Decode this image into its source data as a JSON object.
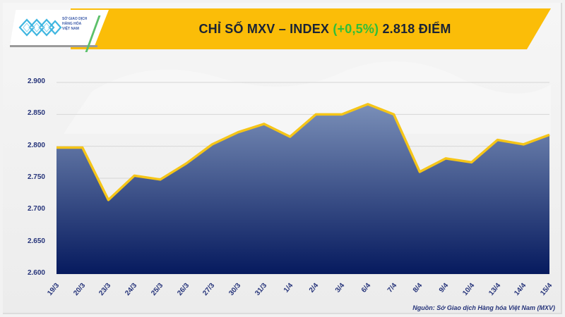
{
  "header": {
    "title_prefix": "CHỈ SỐ MXV – INDEX",
    "change": "(+0,5%)",
    "title_suffix": "2.818 ĐIỂM",
    "banner_color": "#fbbd08",
    "change_color": "#2fbf3a"
  },
  "logo": {
    "line1": "SỞ GIAO DỊCH",
    "line2": "HÀNG HÓA",
    "line3": "VIỆT NAM"
  },
  "source": "Nguồn: Sở Giao dịch Hàng hóa Việt Nam (MXV)",
  "y_ticks": [
    "2.900",
    "2.850",
    "2.800",
    "2.750",
    "2.700",
    "2.650",
    "2.600"
  ],
  "chart_data": {
    "type": "area",
    "title": "CHỈ SỐ MXV – INDEX (+0,5%) 2.818 ĐIỂM",
    "xlabel": "",
    "ylabel": "",
    "categories": [
      "19/3",
      "20/3",
      "23/3",
      "24/3",
      "25/3",
      "26/3",
      "27/3",
      "30/3",
      "31/3",
      "1/4",
      "2/4",
      "3/4",
      "6/4",
      "7/4",
      "8/4",
      "9/4",
      "10/4",
      "13/4",
      "14/4",
      "15/4"
    ],
    "series": [
      {
        "name": "MXV-Index",
        "values": [
          2798,
          2798,
          2716,
          2754,
          2748,
          2773,
          2803,
          2822,
          2835,
          2815,
          2850,
          2850,
          2866,
          2850,
          2760,
          2781,
          2775,
          2810,
          2803,
          2818
        ],
        "line_color": "#f5c518",
        "fill_top": "#7a8fb8",
        "fill_bottom": "#061a5e"
      }
    ],
    "ylim": [
      2600,
      2900
    ],
    "ytick_step": 50,
    "grid": true,
    "legend": "none",
    "annotation": "Nguồn: Sở Giao dịch Hàng hóa Việt Nam (MXV)"
  }
}
